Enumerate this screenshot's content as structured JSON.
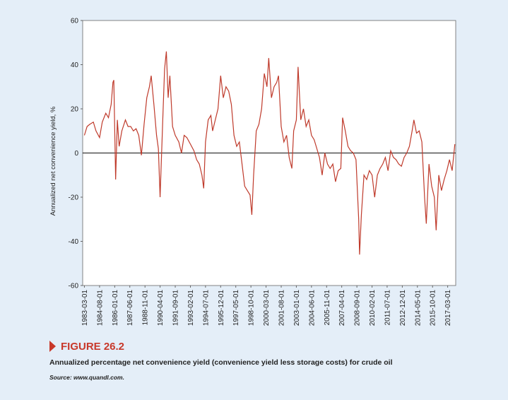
{
  "chart_data": {
    "type": "line",
    "y_label": "Annualized net convenience yield, %",
    "figure_label": "FIGURE 26.2",
    "caption": "Annualized percentage net convenience yield (convenience yield less storage costs) for crude oil",
    "source": "Source: www.quandl.com.",
    "color": "#bf3a2b",
    "xlim": [
      "1983-01-01",
      "2017-12-01"
    ],
    "xticks": [
      "1983-03-01",
      "1984-08-01",
      "1986-01-01",
      "1987-06-01",
      "1988-11-01",
      "1990-04-01",
      "1991-09-01",
      "1993-02-01",
      "1994-07-01",
      "1995-12-01",
      "1997-05-01",
      "1998-10-01",
      "2000-03-01",
      "2001-08-01",
      "2003-01-01",
      "2004-06-01",
      "2005-11-01",
      "2007-04-01",
      "2008-09-01",
      "2010-02-01",
      "2011-07-01",
      "2012-12-01",
      "2014-05-01",
      "2015-10-01",
      "2017-03-01"
    ],
    "ylim": [
      -60,
      60
    ],
    "yticks": [
      -60,
      -40,
      -20,
      0,
      20,
      40,
      60
    ],
    "x": [
      "1983-03-01",
      "1983-06-01",
      "1983-09-01",
      "1984-01-01",
      "1984-04-01",
      "1984-08-01",
      "1984-11-01",
      "1985-03-01",
      "1985-06-01",
      "1985-09-01",
      "1985-11-01",
      "1985-12-01",
      "1986-02-01",
      "1986-04-01",
      "1986-06-01",
      "1986-09-01",
      "1987-01-01",
      "1987-04-01",
      "1987-07-01",
      "1987-10-01",
      "1988-01-01",
      "1988-04-01",
      "1988-07-01",
      "1988-10-01",
      "1989-01-01",
      "1989-04-01",
      "1989-06-01",
      "1989-09-01",
      "1989-12-01",
      "1990-02-01",
      "1990-04-01",
      "1990-07-01",
      "1990-09-01",
      "1990-11-01",
      "1991-01-01",
      "1991-03-01",
      "1991-06-01",
      "1991-09-01",
      "1992-01-01",
      "1992-04-01",
      "1992-07-01",
      "1992-10-01",
      "1993-02-01",
      "1993-06-01",
      "1993-09-01",
      "1993-12-01",
      "1994-03-01",
      "1994-05-01",
      "1994-07-01",
      "1994-10-01",
      "1995-01-01",
      "1995-03-01",
      "1995-06-01",
      "1995-09-01",
      "1995-12-01",
      "1996-03-01",
      "1996-06-01",
      "1996-09-01",
      "1996-12-01",
      "1997-03-01",
      "1997-06-01",
      "1997-09-01",
      "1997-12-01",
      "1998-03-01",
      "1998-06-01",
      "1998-09-01",
      "1998-11-01",
      "1999-01-01",
      "1999-04-01",
      "1999-07-01",
      "1999-10-01",
      "2000-01-01",
      "2000-04-01",
      "2000-06-01",
      "2000-09-01",
      "2000-12-01",
      "2001-03-01",
      "2001-05-01",
      "2001-08-01",
      "2001-11-01",
      "2002-02-01",
      "2002-05-01",
      "2002-08-01",
      "2002-10-01",
      "2003-01-01",
      "2003-03-01",
      "2003-06-01",
      "2003-09-01",
      "2003-12-01",
      "2004-03-01",
      "2004-06-01",
      "2004-09-01",
      "2004-12-01",
      "2005-03-01",
      "2005-06-01",
      "2005-09-01",
      "2005-12-01",
      "2006-03-01",
      "2006-06-01",
      "2006-09-01",
      "2006-12-01",
      "2007-03-01",
      "2007-05-01",
      "2007-08-01",
      "2007-11-01",
      "2008-02-01",
      "2008-05-01",
      "2008-08-01",
      "2008-11-01",
      "2008-12-01",
      "2009-02-01",
      "2009-05-01",
      "2009-08-01",
      "2009-11-01",
      "2010-02-01",
      "2010-05-01",
      "2010-08-01",
      "2010-11-01",
      "2011-02-01",
      "2011-05-01",
      "2011-08-01",
      "2011-11-01",
      "2012-02-01",
      "2012-05-01",
      "2012-08-01",
      "2012-11-01",
      "2013-02-01",
      "2013-05-01",
      "2013-08-01",
      "2013-11-01",
      "2014-01-01",
      "2014-04-01",
      "2014-07-01",
      "2014-10-01",
      "2015-01-01",
      "2015-03-01",
      "2015-06-01",
      "2015-09-01",
      "2015-12-01",
      "2016-02-01",
      "2016-05-01",
      "2016-08-01",
      "2016-11-01",
      "2017-02-01",
      "2017-05-01",
      "2017-08-01",
      "2017-11-01"
    ],
    "values": [
      8,
      12,
      13,
      14,
      10,
      7,
      14,
      18,
      16,
      22,
      32,
      33,
      -12,
      15,
      3,
      10,
      15,
      12,
      12,
      10,
      11,
      8,
      -1,
      13,
      25,
      30,
      35,
      22,
      8,
      2,
      -20,
      15,
      38,
      46,
      25,
      35,
      12,
      8,
      5,
      0,
      8,
      7,
      4,
      1,
      -3,
      -5,
      -10,
      -16,
      5,
      15,
      17,
      10,
      15,
      20,
      35,
      25,
      30,
      28,
      22,
      8,
      3,
      5,
      -5,
      -15,
      -17,
      -19,
      -28,
      -10,
      10,
      13,
      20,
      36,
      30,
      43,
      25,
      30,
      32,
      35,
      12,
      5,
      8,
      -2,
      -7,
      10,
      15,
      39,
      15,
      20,
      12,
      15,
      8,
      6,
      2,
      -2,
      -10,
      0,
      -5,
      -7,
      -5,
      -13,
      -8,
      -7,
      16,
      10,
      3,
      1,
      0,
      -3,
      -30,
      -46,
      -28,
      -10,
      -12,
      -8,
      -10,
      -20,
      -10,
      -7,
      -5,
      -2,
      -8,
      1,
      -2,
      -3,
      -5,
      -6,
      -2,
      0,
      3,
      10,
      15,
      9,
      10,
      5,
      -20,
      -32,
      -5,
      -15,
      -20,
      -35,
      -10,
      -17,
      -12,
      -8,
      -3,
      -8,
      4
    ]
  }
}
